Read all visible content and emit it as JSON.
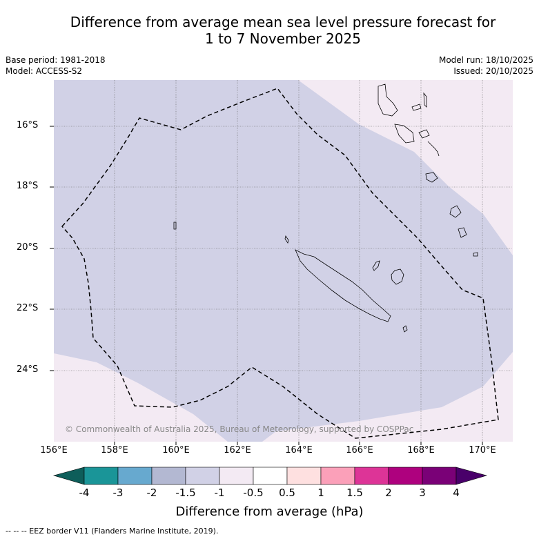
{
  "title_line1": "Difference from average mean sea level pressure forecast for",
  "title_line2": "1 to 7 November 2025",
  "base_period": "Base period: 1981-2018",
  "model": "Model: ACCESS-S2",
  "model_run": "Model run: 18/10/2025",
  "issued": "Issued: 20/10/2025",
  "copyright": "© Commonwealth of Australia 2025, Bureau of Meteorology, supported by COSPPac",
  "latitude_labels": [
    "16°S",
    "18°S",
    "20°S",
    "22°S",
    "24°S"
  ],
  "longitude_labels": [
    "156°E",
    "158°E",
    "160°E",
    "162°E",
    "164°E",
    "166°E",
    "168°E",
    "170°E"
  ],
  "colorbar": {
    "title": "Difference from average (hPa)",
    "tick_labels": [
      "-4",
      "-3",
      "-2",
      "-1.5",
      "-1",
      "-0.5",
      "0.5",
      "1",
      "1.5",
      "2",
      "3",
      "4"
    ],
    "colors": [
      "#0e5e5a",
      "#1a9598",
      "#67a9cf",
      "#b3b8d2",
      "#d1d1e6",
      "#f3eaf3",
      "#ffffff",
      "#fee0e0",
      "#fba0b9",
      "#dd3497",
      "#ae017e",
      "#7a0177",
      "#49006a"
    ]
  },
  "legend_note": "-- -- -- EEZ border V11 (Flanders Marine Institute, 2019).",
  "colors": {
    "background_field": "#d1d1e6",
    "light_field": "#f3eaf3"
  }
}
